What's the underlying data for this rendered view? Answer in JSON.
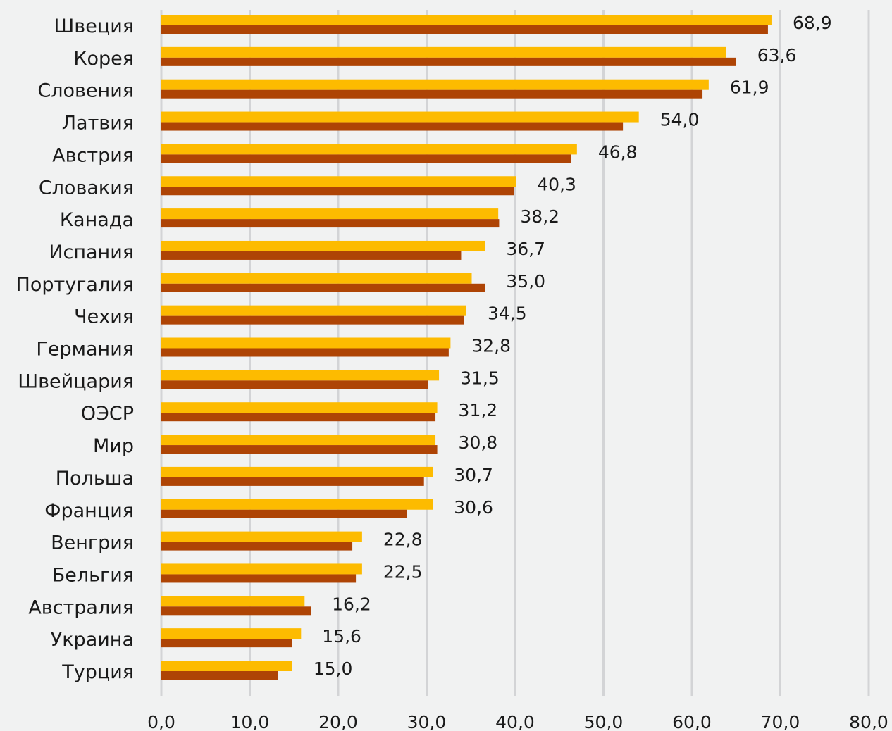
{
  "chart_data": {
    "type": "bar",
    "orientation": "horizontal",
    "categories": [
      "Швеция",
      "Корея",
      "Словения",
      "Латвия",
      "Австрия",
      "Словакия",
      "Канада",
      "Испания",
      "Португалия",
      "Чехия",
      "Германия",
      "Швейцария",
      "ОЭСР",
      "Мир",
      "Польша",
      "Франция",
      "Венгрия",
      "Бельгия",
      "Австралия",
      "Украина",
      "Турция"
    ],
    "data_labels": [
      "68,9",
      "63,6",
      "61,9",
      "54,0",
      "46,8",
      "40,3",
      "38,2",
      "36,7",
      "35,0",
      "34,5",
      "32,8",
      "31,5",
      "31,2",
      "30,8",
      "30,7",
      "30,6",
      "22,8",
      "22,5",
      "16,2",
      "15,6",
      "15,0"
    ],
    "series": [
      {
        "color": "#fdbb00",
        "values": [
          69.0,
          63.9,
          61.9,
          54.0,
          47.0,
          40.1,
          38.1,
          36.6,
          35.1,
          34.5,
          32.7,
          31.4,
          31.2,
          31.0,
          30.7,
          30.7,
          22.7,
          22.7,
          16.2,
          15.8,
          14.8
        ]
      },
      {
        "color": "#ae4405",
        "values": [
          68.6,
          65.0,
          61.2,
          52.2,
          46.3,
          39.9,
          38.2,
          33.9,
          36.6,
          34.2,
          32.5,
          30.2,
          31.0,
          31.2,
          29.7,
          27.8,
          21.6,
          22.0,
          16.9,
          14.8,
          13.2
        ]
      }
    ],
    "xlim": [
      0,
      80
    ],
    "xticks": [
      "0,0",
      "10,0",
      "20,0",
      "30,0",
      "40,0",
      "50,0",
      "60,0",
      "70,0",
      "80,0"
    ],
    "grid": "vertical",
    "legend": "none",
    "colors": {
      "background": "#f1f2f2",
      "grid": "#d3d4d6",
      "text": "#1a1a1a"
    }
  }
}
